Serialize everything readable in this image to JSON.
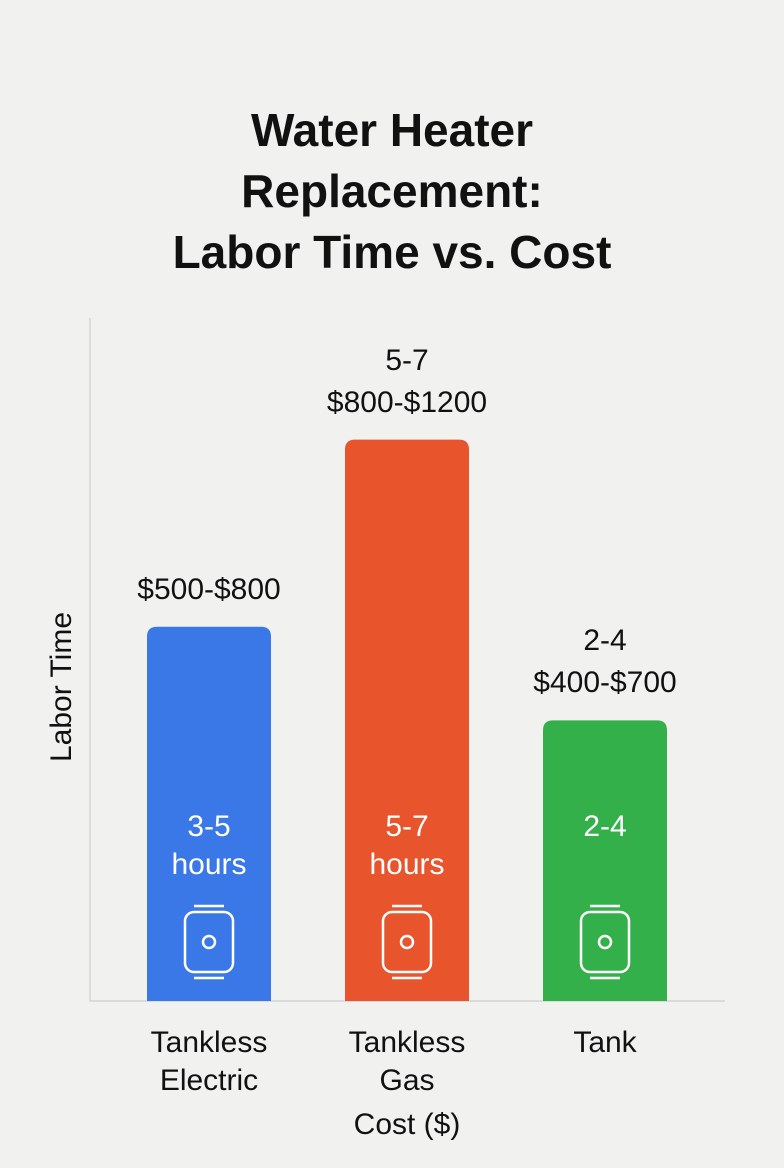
{
  "chart_data": {
    "type": "bar",
    "title": "Water Heater\nReplacement:\nLabor Time vs. Cost",
    "y_label": "Labor Time",
    "x_label": "Cost ($)",
    "categories": [
      "Tankless\nElectric",
      "Tankless\nGas",
      "Tank"
    ],
    "series": [
      {
        "name": "Labor Time",
        "colors": [
          "#3b78e7",
          "#e8542b",
          "#34b04a"
        ],
        "values": [
          4,
          6,
          3
        ],
        "value_labels": [
          "3-5\nhours",
          "5-7\nhours",
          "2-4"
        ]
      }
    ],
    "top_labels": [
      "$500-$800",
      "5-7\n$800-$1200",
      "2-4\n$400-$700"
    ],
    "ylim": [
      0,
      7.3
    ]
  }
}
